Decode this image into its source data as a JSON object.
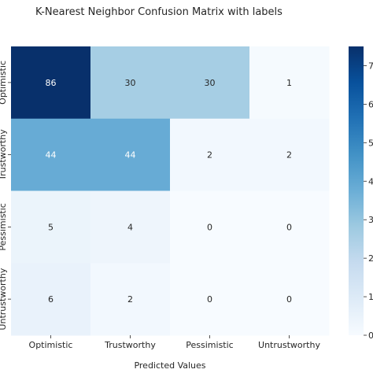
{
  "chart_data": {
    "type": "heatmap",
    "title": "K-Nearest Neighbor Confusion Matrix with labels",
    "xlabel": "Predicted Values",
    "ylabel": "",
    "x_categories": [
      "Optimistic",
      "Trustworthy",
      "Pessimistic",
      "Untrustworthy"
    ],
    "y_categories": [
      "Optimistic",
      "Trustworthy",
      "Pessimistic",
      "Untrustworthy"
    ],
    "values": [
      [
        86,
        30,
        30,
        1
      ],
      [
        44,
        44,
        2,
        2
      ],
      [
        5,
        4,
        0,
        0
      ],
      [
        6,
        2,
        0,
        0
      ]
    ],
    "colormap": "Blues",
    "vmin": 0,
    "vmax": 86,
    "colorbar_ticks": [
      0,
      1,
      2,
      3,
      4,
      5,
      6,
      7
    ],
    "colorbar_tick_labels_visible": [
      "0",
      "1",
      "2",
      "3",
      "4",
      "5",
      "6",
      "7"
    ],
    "annotations": true
  }
}
